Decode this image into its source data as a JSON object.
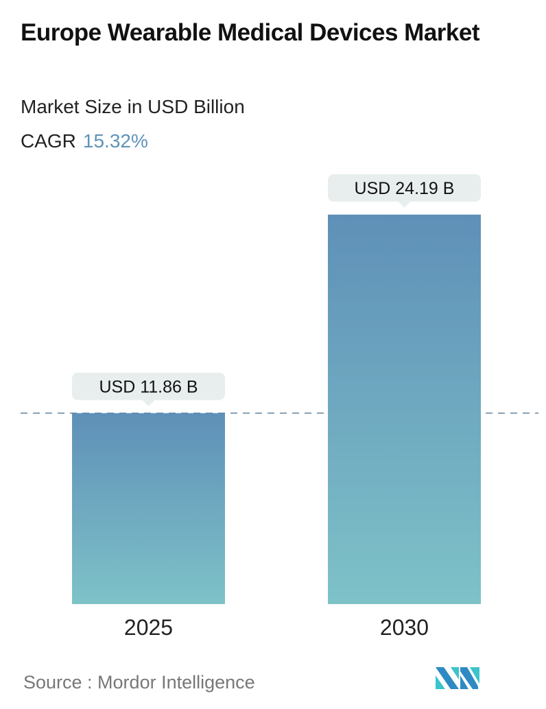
{
  "title": "Europe Wearable Medical Devices Market",
  "subtitle": "Market Size in USD Billion",
  "cagr_label": "CAGR",
  "cagr_value": "15.32%",
  "source": "Source :  Mordor Intelligence",
  "colors": {
    "bar_top": "#5f90b8",
    "bar_bottom": "#7ec2c8",
    "label_bg": "#e8eeee",
    "cagr": "#5f93b8",
    "dashed_line": "#5f7f99"
  },
  "chart_data": {
    "type": "bar",
    "categories": [
      "2025",
      "2030"
    ],
    "values": [
      11.86,
      24.19
    ],
    "data_labels": [
      "USD 11.86 B",
      "USD 24.19 B"
    ],
    "title": "Europe Wearable Medical Devices Market",
    "ylabel": "Market Size in USD Billion",
    "ylim": [
      0,
      24.19
    ],
    "grid": false,
    "reference_line": 11.86
  }
}
